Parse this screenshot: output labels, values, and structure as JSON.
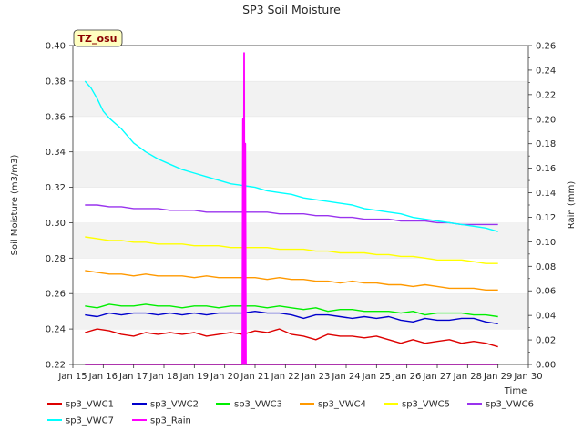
{
  "chart_data": {
    "type": "line",
    "title": "SP3 Soil Moisture",
    "xlabel": "Time",
    "ylabel_left": "Soil Moisture (m3/m3)",
    "ylabel_right": "Rain (mm)",
    "tag_label": "TZ_osu",
    "x_ticks": [
      "Jan 15",
      "Jan 16",
      "Jan 17",
      "Jan 18",
      "Jan 19",
      "Jan 20",
      "Jan 21",
      "Jan 22",
      "Jan 23",
      "Jan 24",
      "Jan 25",
      "Jan 26",
      "Jan 27",
      "Jan 28",
      "Jan 29",
      "Jan 30"
    ],
    "x_range_days": [
      15,
      30
    ],
    "y_left_ticks": [
      "0.22",
      "0.24",
      "0.26",
      "0.28",
      "0.30",
      "0.32",
      "0.34",
      "0.36",
      "0.38",
      "0.40"
    ],
    "y_left_range": [
      0.22,
      0.4
    ],
    "y_right_ticks": [
      "0.00",
      "0.02",
      "0.04",
      "0.06",
      "0.08",
      "0.10",
      "0.12",
      "0.14",
      "0.16",
      "0.18",
      "0.20",
      "0.22",
      "0.24",
      "0.26"
    ],
    "y_right_range": [
      0.0,
      0.26
    ],
    "grid": "horizontal bands",
    "legend_position": "bottom",
    "series": [
      {
        "name": "sp3_VWC1",
        "color": "#dd0000",
        "axis": "left",
        "x": [
          15.4,
          15.8,
          16.2,
          16.6,
          17.0,
          17.4,
          17.8,
          18.2,
          18.6,
          19.0,
          19.4,
          19.8,
          20.2,
          20.6,
          21.0,
          21.4,
          21.8,
          22.2,
          22.6,
          23.0,
          23.4,
          23.8,
          24.2,
          24.6,
          25.0,
          25.4,
          25.8,
          26.2,
          26.6,
          27.0,
          27.4,
          27.8,
          28.2,
          28.6,
          29.0
        ],
        "y": [
          0.238,
          0.24,
          0.239,
          0.237,
          0.236,
          0.238,
          0.237,
          0.238,
          0.237,
          0.238,
          0.236,
          0.237,
          0.238,
          0.237,
          0.239,
          0.238,
          0.24,
          0.237,
          0.236,
          0.234,
          0.237,
          0.236,
          0.236,
          0.235,
          0.236,
          0.234,
          0.232,
          0.234,
          0.232,
          0.233,
          0.234,
          0.232,
          0.233,
          0.232,
          0.23
        ]
      },
      {
        "name": "sp3_VWC2",
        "color": "#0000cc",
        "axis": "left",
        "x": [
          15.4,
          15.8,
          16.2,
          16.6,
          17.0,
          17.4,
          17.8,
          18.2,
          18.6,
          19.0,
          19.4,
          19.8,
          20.2,
          20.6,
          21.0,
          21.4,
          21.8,
          22.2,
          22.6,
          23.0,
          23.4,
          23.8,
          24.2,
          24.6,
          25.0,
          25.4,
          25.8,
          26.2,
          26.6,
          27.0,
          27.4,
          27.8,
          28.2,
          28.6,
          29.0
        ],
        "y": [
          0.248,
          0.247,
          0.249,
          0.248,
          0.249,
          0.249,
          0.248,
          0.249,
          0.248,
          0.249,
          0.248,
          0.249,
          0.249,
          0.249,
          0.25,
          0.249,
          0.249,
          0.248,
          0.246,
          0.248,
          0.248,
          0.247,
          0.246,
          0.247,
          0.246,
          0.247,
          0.245,
          0.244,
          0.246,
          0.245,
          0.245,
          0.246,
          0.246,
          0.244,
          0.243
        ]
      },
      {
        "name": "sp3_VWC3",
        "color": "#00ee00",
        "axis": "left",
        "x": [
          15.4,
          15.8,
          16.2,
          16.6,
          17.0,
          17.4,
          17.8,
          18.2,
          18.6,
          19.0,
          19.4,
          19.8,
          20.2,
          20.6,
          21.0,
          21.4,
          21.8,
          22.2,
          22.6,
          23.0,
          23.4,
          23.8,
          24.2,
          24.6,
          25.0,
          25.4,
          25.8,
          26.2,
          26.6,
          27.0,
          27.4,
          27.8,
          28.2,
          28.6,
          29.0
        ],
        "y": [
          0.253,
          0.252,
          0.254,
          0.253,
          0.253,
          0.254,
          0.253,
          0.253,
          0.252,
          0.253,
          0.253,
          0.252,
          0.253,
          0.253,
          0.253,
          0.252,
          0.253,
          0.252,
          0.251,
          0.252,
          0.25,
          0.251,
          0.251,
          0.25,
          0.25,
          0.25,
          0.249,
          0.25,
          0.248,
          0.249,
          0.249,
          0.249,
          0.248,
          0.248,
          0.247
        ]
      },
      {
        "name": "sp3_VWC4",
        "color": "#ff9900",
        "axis": "left",
        "x": [
          15.4,
          15.8,
          16.2,
          16.6,
          17.0,
          17.4,
          17.8,
          18.2,
          18.6,
          19.0,
          19.4,
          19.8,
          20.2,
          20.6,
          21.0,
          21.4,
          21.8,
          22.2,
          22.6,
          23.0,
          23.4,
          23.8,
          24.2,
          24.6,
          25.0,
          25.4,
          25.8,
          26.2,
          26.6,
          27.0,
          27.4,
          27.8,
          28.2,
          28.6,
          29.0
        ],
        "y": [
          0.273,
          0.272,
          0.271,
          0.271,
          0.27,
          0.271,
          0.27,
          0.27,
          0.27,
          0.269,
          0.27,
          0.269,
          0.269,
          0.269,
          0.269,
          0.268,
          0.269,
          0.268,
          0.268,
          0.267,
          0.267,
          0.266,
          0.267,
          0.266,
          0.266,
          0.265,
          0.265,
          0.264,
          0.265,
          0.264,
          0.263,
          0.263,
          0.263,
          0.262,
          0.262
        ]
      },
      {
        "name": "sp3_VWC5",
        "color": "#ffff00",
        "axis": "left",
        "x": [
          15.4,
          15.8,
          16.2,
          16.6,
          17.0,
          17.4,
          17.8,
          18.2,
          18.6,
          19.0,
          19.4,
          19.8,
          20.2,
          20.6,
          21.0,
          21.4,
          21.8,
          22.2,
          22.6,
          23.0,
          23.4,
          23.8,
          24.2,
          24.6,
          25.0,
          25.4,
          25.8,
          26.2,
          26.6,
          27.0,
          27.4,
          27.8,
          28.2,
          28.6,
          29.0
        ],
        "y": [
          0.292,
          0.291,
          0.29,
          0.29,
          0.289,
          0.289,
          0.288,
          0.288,
          0.288,
          0.287,
          0.287,
          0.287,
          0.286,
          0.286,
          0.286,
          0.286,
          0.285,
          0.285,
          0.285,
          0.284,
          0.284,
          0.283,
          0.283,
          0.283,
          0.282,
          0.282,
          0.281,
          0.281,
          0.28,
          0.279,
          0.279,
          0.279,
          0.278,
          0.277,
          0.277
        ]
      },
      {
        "name": "sp3_VWC6",
        "color": "#9933ee",
        "axis": "left",
        "x": [
          15.4,
          15.8,
          16.2,
          16.6,
          17.0,
          17.4,
          17.8,
          18.2,
          18.6,
          19.0,
          19.4,
          19.8,
          20.2,
          20.6,
          21.0,
          21.4,
          21.8,
          22.2,
          22.6,
          23.0,
          23.4,
          23.8,
          24.2,
          24.6,
          25.0,
          25.4,
          25.8,
          26.2,
          26.6,
          27.0,
          27.4,
          27.8,
          28.2,
          28.6,
          29.0
        ],
        "y": [
          0.31,
          0.31,
          0.309,
          0.309,
          0.308,
          0.308,
          0.308,
          0.307,
          0.307,
          0.307,
          0.306,
          0.306,
          0.306,
          0.306,
          0.306,
          0.306,
          0.305,
          0.305,
          0.305,
          0.304,
          0.304,
          0.303,
          0.303,
          0.302,
          0.302,
          0.302,
          0.301,
          0.301,
          0.301,
          0.3,
          0.3,
          0.299,
          0.299,
          0.299,
          0.299
        ]
      },
      {
        "name": "sp3_VWC7",
        "color": "#00ffff",
        "axis": "left",
        "x": [
          15.4,
          15.6,
          15.8,
          16.0,
          16.2,
          16.4,
          16.6,
          16.8,
          17.0,
          17.4,
          17.8,
          18.2,
          18.6,
          19.0,
          19.4,
          19.8,
          20.2,
          20.6,
          21.0,
          21.4,
          21.8,
          22.2,
          22.6,
          23.0,
          23.4,
          23.8,
          24.2,
          24.6,
          25.0,
          25.4,
          25.8,
          26.2,
          26.6,
          27.0,
          27.4,
          27.8,
          28.2,
          28.6,
          29.0
        ],
        "y": [
          0.38,
          0.376,
          0.37,
          0.363,
          0.359,
          0.356,
          0.353,
          0.349,
          0.345,
          0.34,
          0.336,
          0.333,
          0.33,
          0.328,
          0.326,
          0.324,
          0.322,
          0.321,
          0.32,
          0.318,
          0.317,
          0.316,
          0.314,
          0.313,
          0.312,
          0.311,
          0.31,
          0.308,
          0.307,
          0.306,
          0.305,
          0.303,
          0.302,
          0.301,
          0.3,
          0.299,
          0.298,
          0.297,
          0.295
        ]
      },
      {
        "name": "sp3_Rain",
        "color": "#ff00ff",
        "axis": "right",
        "x": [
          15.4,
          20.58,
          20.6,
          20.62,
          20.64,
          20.66,
          20.68,
          20.7,
          29.0
        ],
        "y": [
          0.0,
          0.0,
          0.2,
          0.0,
          0.254,
          0.0,
          0.18,
          0.0,
          0.0
        ]
      }
    ]
  }
}
